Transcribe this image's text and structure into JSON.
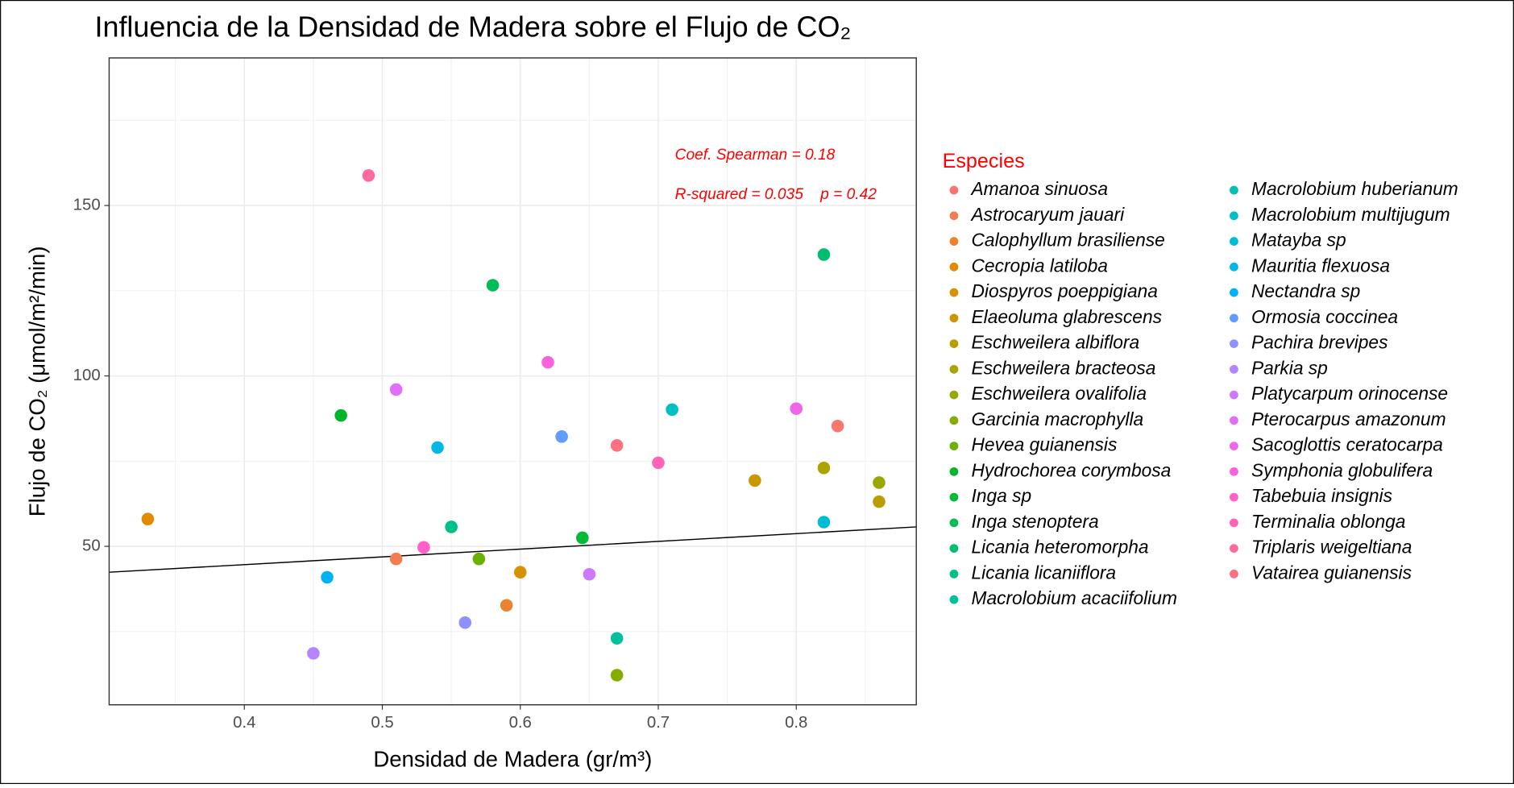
{
  "chart_data": {
    "type": "scatter",
    "title": "Influencia de la Densidad de Madera sobre el Flujo de CO₂",
    "x_label": "Densidad de Madera (gr/m³)",
    "y_label": "Flujo de CO₂ (μmol/m²/min)",
    "legend_title": "Especies",
    "annotations": [
      "Coef. Spearman = 0.18",
      "R-squared = 0.035    p = 0.42"
    ],
    "xlim": [
      0.302,
      0.887
    ],
    "ylim": [
      3.5,
      193.3
    ],
    "xticks": [
      0.4,
      0.5,
      0.6,
      0.7,
      0.8
    ],
    "yticks": [
      50,
      100,
      150
    ],
    "grid": true,
    "legend": "right",
    "trend_line": {
      "color": "#000000",
      "x": [
        0.302,
        0.887
      ],
      "values": [
        42.4,
        55.7
      ]
    },
    "series": [
      {
        "name": "Amanoa sinuosa",
        "color": "#F8766D",
        "x": [
          0.83
        ],
        "values": [
          85.3
        ]
      },
      {
        "name": "Astrocaryum jauari",
        "color": "#F27D52",
        "x": [
          0.51
        ],
        "values": [
          46.3
        ]
      },
      {
        "name": "Calophyllum brasiliense",
        "color": "#EA8331",
        "x": [
          0.59
        ],
        "values": [
          32.7
        ]
      },
      {
        "name": "Cecropia latiloba",
        "color": "#E18A00",
        "x": [
          0.33
        ],
        "values": [
          58
        ]
      },
      {
        "name": "Diospyros poeppigiana",
        "color": "#D69100",
        "x": [
          0.6
        ],
        "values": [
          42.4
        ]
      },
      {
        "name": "Elaeoluma glabrescens",
        "color": "#C99800",
        "x": [
          0.77
        ],
        "values": [
          69.3
        ]
      },
      {
        "name": "Eschweilera albiflora",
        "color": "#BB9D00",
        "x": [
          0.86
        ],
        "values": [
          63.1
        ]
      },
      {
        "name": "Eschweilera bracteosa",
        "color": "#ABA300",
        "x": [
          0.82
        ],
        "values": [
          73
        ]
      },
      {
        "name": "Eschweilera ovalifolia",
        "color": "#99A800",
        "x": [
          0.86
        ],
        "values": [
          68.7
        ]
      },
      {
        "name": "Garcinia macrophylla",
        "color": "#84AD00",
        "x": [
          0.67
        ],
        "values": [
          12.2
        ]
      },
      {
        "name": "Hevea guianensis",
        "color": "#6BB100",
        "x": [
          0.57
        ],
        "values": [
          46.3
        ]
      },
      {
        "name": "Hydrochorea corymbosa",
        "color": "#00B52A",
        "x": [
          0.47
        ],
        "values": [
          88.4
        ]
      },
      {
        "name": "Inga sp",
        "color": "#00BA38",
        "x": [
          0.645
        ],
        "values": [
          52.5
        ]
      },
      {
        "name": "Inga stenoptera",
        "color": "#00BC59",
        "x": [
          0.58
        ],
        "values": [
          126.6
        ]
      },
      {
        "name": "Licania heteromorpha",
        "color": "#00BE70",
        "x": [
          0.82
        ],
        "values": [
          135.6
        ]
      },
      {
        "name": "Licania licaniiflora",
        "color": "#00C087",
        "x": [
          0.55
        ],
        "values": [
          55.7
        ]
      },
      {
        "name": "Macrolobium acaciifolium",
        "color": "#00C19C",
        "x": [
          0.67
        ],
        "values": [
          23
        ]
      },
      {
        "name": "Macrolobium huberianum",
        "color": "#00C0AF",
        "x": [],
        "values": []
      },
      {
        "name": "Macrolobium multijugum",
        "color": "#00BFC2",
        "x": [
          0.71
        ],
        "values": [
          90.1
        ]
      },
      {
        "name": "Matayba sp",
        "color": "#00BCD4",
        "x": [
          0.82
        ],
        "values": [
          57.1
        ]
      },
      {
        "name": "Mauritia flexuosa",
        "color": "#00B8E5",
        "x": [
          0.54
        ],
        "values": [
          79
        ]
      },
      {
        "name": "Nectandra sp",
        "color": "#00B2F3",
        "x": [
          0.46
        ],
        "values": [
          40.9
        ]
      },
      {
        "name": "Ormosia coccinea",
        "color": "#619CFF",
        "x": [
          0.63
        ],
        "values": [
          82.2
        ]
      },
      {
        "name": "Pachira brevipes",
        "color": "#8F91FF",
        "x": [
          0.56
        ],
        "values": [
          27.6
        ]
      },
      {
        "name": "Parkia sp",
        "color": "#B385FF",
        "x": [
          0.45
        ],
        "values": [
          18.6
        ]
      },
      {
        "name": "Platycarpum orinocense",
        "color": "#CF78FF",
        "x": [
          0.65
        ],
        "values": [
          41.8
        ]
      },
      {
        "name": "Pterocarpus amazonum",
        "color": "#E26EF7",
        "x": [
          0.51
        ],
        "values": [
          96
        ]
      },
      {
        "name": "Sacoglottis ceratocarpa",
        "color": "#F066EA",
        "x": [
          0.8
        ],
        "values": [
          90.4
        ]
      },
      {
        "name": "Symphonia globulifera",
        "color": "#FA62DB",
        "x": [
          0.62
        ],
        "values": [
          104
        ]
      },
      {
        "name": "Tabebuia insignis",
        "color": "#FF61C9",
        "x": [
          0.53
        ],
        "values": [
          49.7
        ]
      },
      {
        "name": "Terminalia oblonga",
        "color": "#FF64B5",
        "x": [
          0.7
        ],
        "values": [
          74.5
        ]
      },
      {
        "name": "Triplaris weigeltiana",
        "color": "#FF6A9E",
        "x": [
          0.49
        ],
        "values": [
          158.8
        ]
      },
      {
        "name": "Vatairea guianensis",
        "color": "#FC717F",
        "x": [
          0.67
        ],
        "values": [
          79.6
        ]
      }
    ]
  }
}
